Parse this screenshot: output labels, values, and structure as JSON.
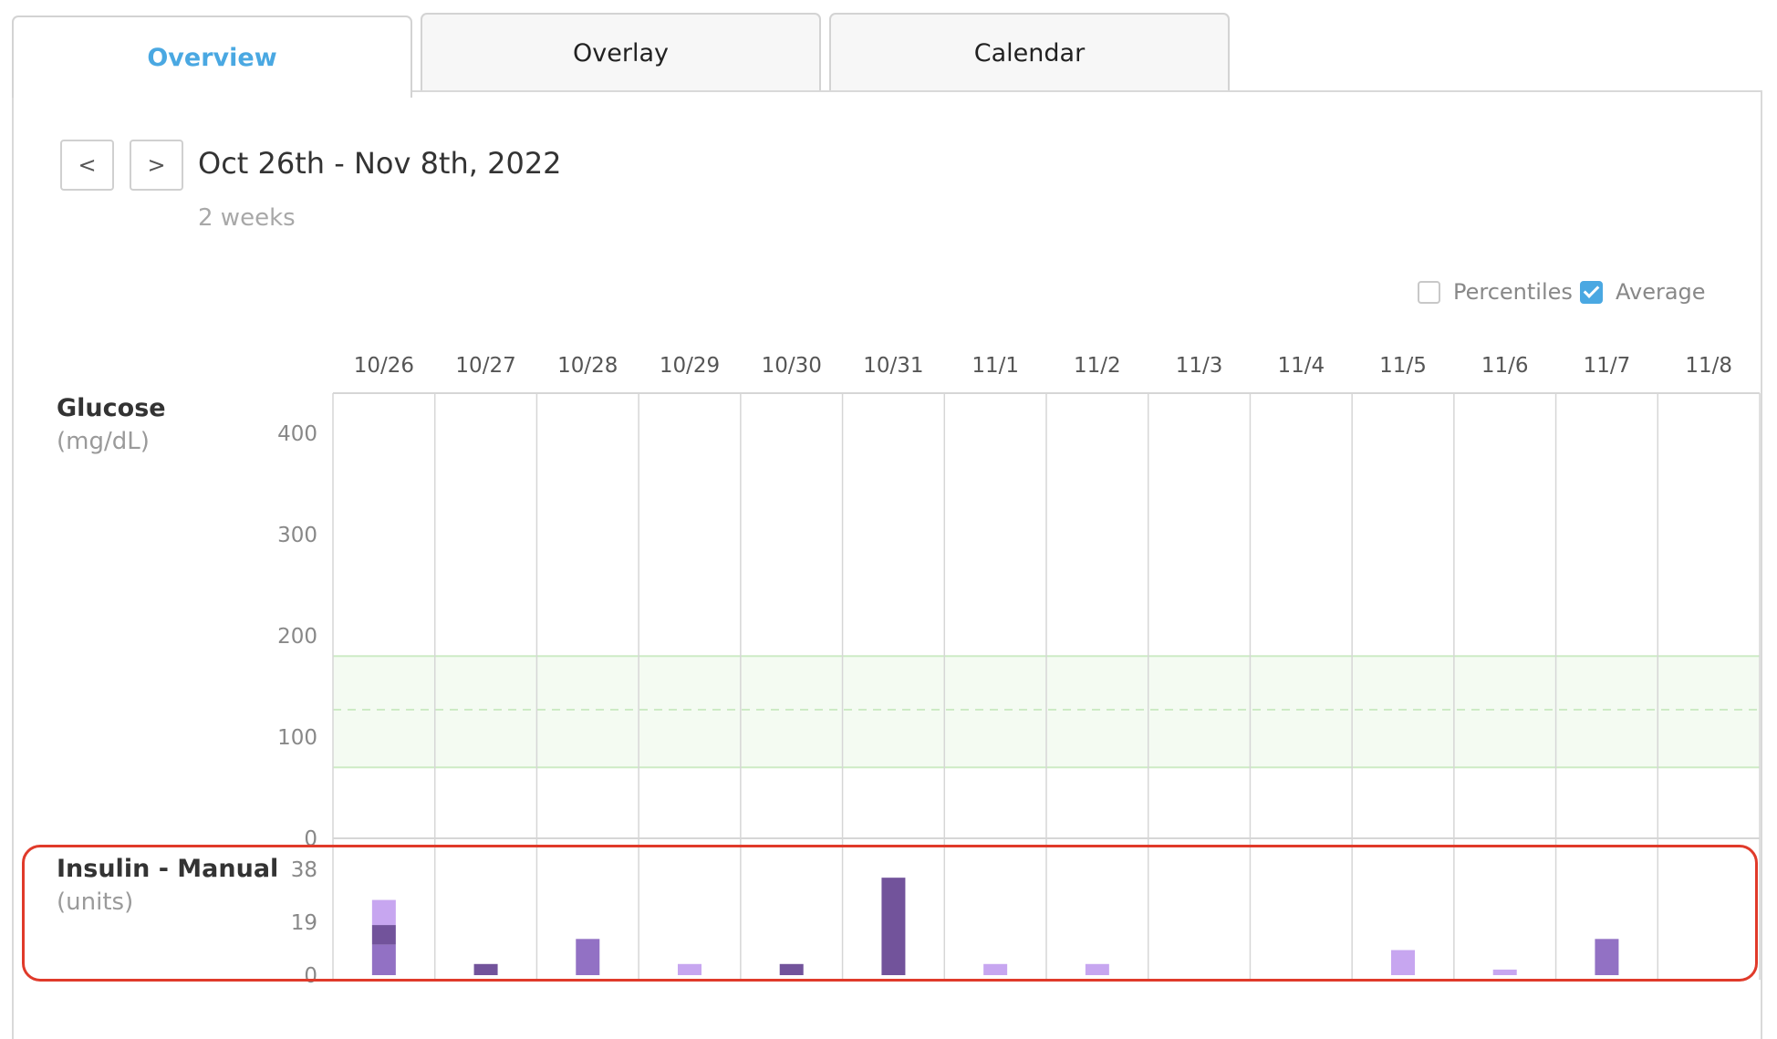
{
  "tabs": [
    {
      "label": "Overview",
      "active": true
    },
    {
      "label": "Overlay",
      "active": false
    },
    {
      "label": "Calendar",
      "active": false
    }
  ],
  "nav": {
    "prev_label": "<",
    "next_label": ">"
  },
  "date_range": "Oct 26th - Nov 8th, 2022",
  "duration": "2 weeks",
  "toggles": {
    "percentiles": {
      "label": "Percentiles",
      "checked": false
    },
    "average": {
      "label": "Average",
      "checked": true
    }
  },
  "glucose": {
    "title": "Glucose",
    "unit": "(mg/dL)",
    "y_ticks": [
      400,
      300,
      200,
      100,
      0
    ],
    "target_range": [
      70,
      180
    ],
    "target_mid": 127
  },
  "insulin": {
    "title": "Insulin - Manual",
    "unit": "(units)",
    "y_ticks": [
      38,
      19,
      0
    ]
  },
  "colors": {
    "accent": "#4aa8e2",
    "target_fill": "#f4fbf2",
    "target_line": "#cdebc5",
    "grid": "#d6d6d6",
    "insulin_light": "#c7a6f0",
    "insulin_mid": "#9271c4",
    "insulin_dark": "#72539b",
    "highlight": "#e03a2a"
  },
  "chart_data": {
    "type": "bar",
    "title": "",
    "categories": [
      "10/26",
      "10/27",
      "10/28",
      "10/29",
      "10/30",
      "10/31",
      "11/1",
      "11/2",
      "11/3",
      "11/4",
      "11/5",
      "11/6",
      "11/7",
      "11/8"
    ],
    "ylabel": "Insulin - Manual (units)",
    "ylim": [
      0,
      38
    ],
    "stacked": true,
    "days": [
      [
        {
          "value": 11,
          "tone": "mid"
        },
        {
          "value": 7,
          "tone": "dark"
        },
        {
          "value": 9,
          "tone": "light"
        }
      ],
      [
        {
          "value": 4,
          "tone": "dark"
        }
      ],
      [
        {
          "value": 13,
          "tone": "mid"
        }
      ],
      [
        {
          "value": 4,
          "tone": "light"
        }
      ],
      [
        {
          "value": 4,
          "tone": "dark"
        }
      ],
      [
        {
          "value": 35,
          "tone": "dark"
        }
      ],
      [
        {
          "value": 4,
          "tone": "light"
        }
      ],
      [
        {
          "value": 4,
          "tone": "light"
        }
      ],
      [],
      [],
      [
        {
          "value": 9,
          "tone": "light"
        }
      ],
      [
        {
          "value": 2,
          "tone": "light"
        }
      ],
      [
        {
          "value": 13,
          "tone": "mid"
        }
      ],
      []
    ]
  }
}
